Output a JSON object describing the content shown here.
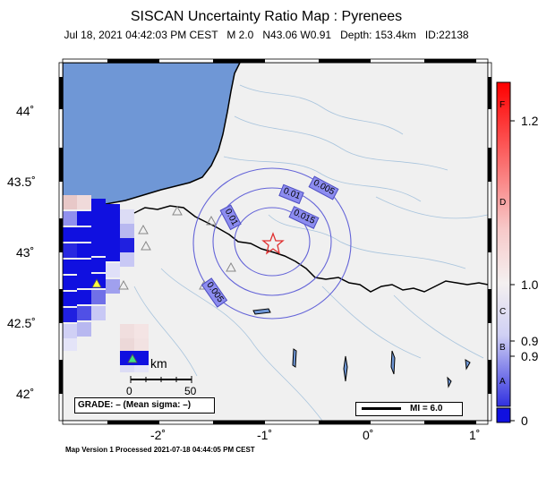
{
  "header": {
    "title": "SISCAN Uncertainty Ratio Map : Pyrenees",
    "date": "Jul 18, 2021 04:42:03 PM CEST",
    "magnitude": "M 2.0",
    "location": "N43.06 W0.91",
    "depth": "Depth: 153.4km",
    "event_id": "ID:22138"
  },
  "footer": {
    "processed": "Map Version 1 Processed 2021-07-18 04:44:05 PM CEST"
  },
  "axes": {
    "lat_ticks": [
      "44˚",
      "43.5˚",
      "43˚",
      "42.5˚",
      "42˚"
    ],
    "lon_ticks": [
      "-2˚",
      "-1˚",
      "0˚",
      "1˚"
    ]
  },
  "colorbar": {
    "letters": [
      "F",
      "D",
      "C",
      "B",
      "A"
    ],
    "values": [
      "1.2",
      "1.0",
      "0.9",
      "0.9",
      "0"
    ]
  },
  "contours": {
    "labels": [
      "0.005",
      "0.01",
      "0.015",
      "0.01",
      "0.005"
    ]
  },
  "legend": {
    "grade": "GRADE: – (Mean sigma: –)",
    "mi": "MI = 6.0",
    "scale_unit": "km",
    "scale_start": "0",
    "scale_end": "50"
  },
  "colors": {
    "sea": "#6f97d6",
    "land": "#f0f0f0",
    "contour": "#6464d8",
    "epicenter": "#e03030",
    "high_uncertainty": "#1010e0"
  },
  "epicenter": {
    "icon": "star-icon",
    "lat": 43.06,
    "lon": -0.91
  }
}
